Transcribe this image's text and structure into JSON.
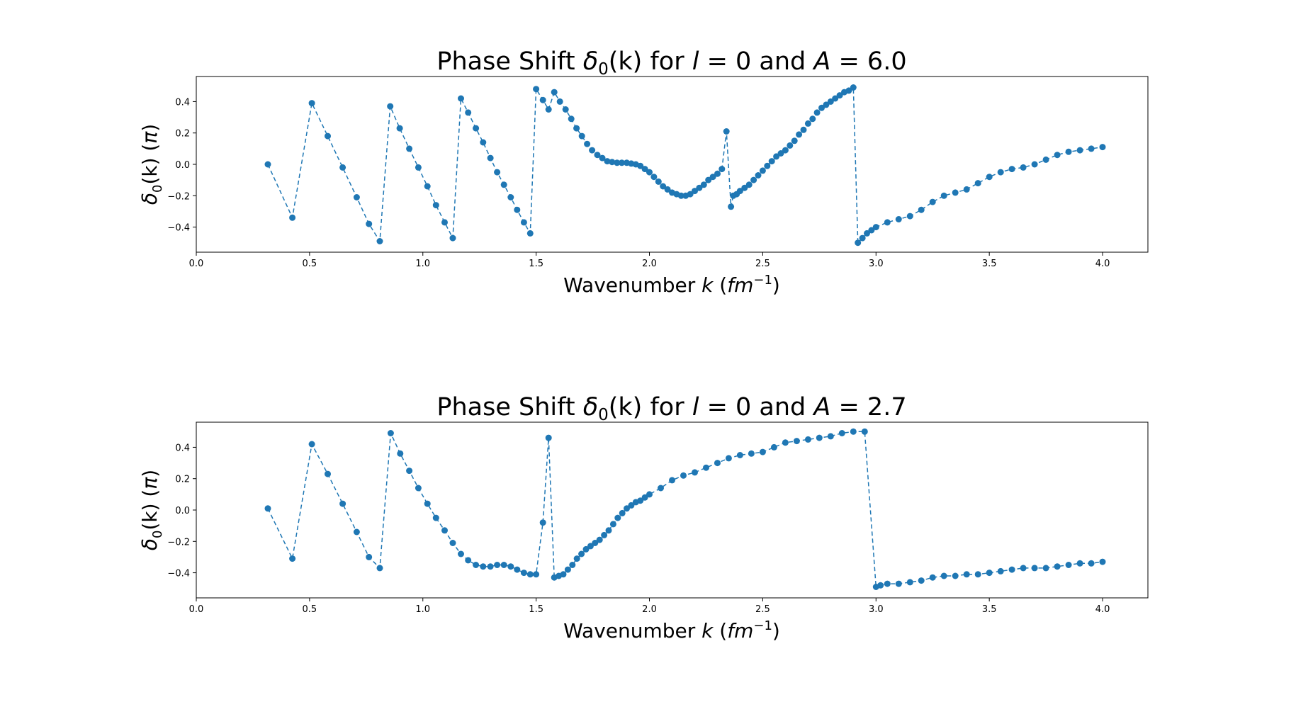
{
  "chart_data": [
    {
      "type": "line",
      "title": "Phase Shift δ₀(k) for l = 0 and A = 6.0",
      "title_parts": {
        "prefix": "Phase Shift ",
        "delta": "δ",
        "sub": "0",
        "k_part": "(k)",
        "for": " for ",
        "l": "l",
        "eq0": " = 0 and ",
        "A": "A",
        "eq": " = 6.0"
      },
      "xlabel": "Wavenumber k (fm⁻¹)",
      "xlabel_parts": {
        "prefix": "Wavenumber ",
        "k": "k",
        "open": " (",
        "fm": "fm",
        "sup": "−1",
        "close": ")"
      },
      "ylabel": "δ₀(k) (π)",
      "ylabel_parts": {
        "delta": "δ",
        "sub": "0",
        "k_part": "(k) (",
        "pi": "π",
        "close": ")"
      },
      "xlim": [
        0.0,
        4.2
      ],
      "ylim": [
        -0.56,
        0.56
      ],
      "xticks": [
        0.0,
        0.5,
        1.0,
        1.5,
        2.0,
        2.5,
        3.0,
        3.5,
        4.0
      ],
      "xtick_labels": [
        "0.0",
        "0.5",
        "1.0",
        "1.5",
        "2.0",
        "2.5",
        "3.0",
        "3.5",
        "4.0"
      ],
      "yticks": [
        -0.4,
        -0.2,
        0.0,
        0.2,
        0.4
      ],
      "ytick_labels": [
        "−0.4",
        "−0.2",
        "0.0",
        "0.2",
        "0.4"
      ],
      "grid": false,
      "series_color": "#1f77b4",
      "series": [
        {
          "style": "dashed line with circle markers",
          "x": [
            0.316,
            0.424,
            0.51,
            0.58,
            0.646,
            0.708,
            0.762,
            0.81,
            0.856,
            0.898,
            0.94,
            0.98,
            1.02,
            1.058,
            1.096,
            1.132,
            1.168,
            1.2,
            1.234,
            1.266,
            1.298,
            1.328,
            1.358,
            1.388,
            1.416,
            1.446,
            1.474,
            1.5,
            1.53,
            1.555,
            1.58,
            1.605,
            1.63,
            1.655,
            1.678,
            1.702,
            1.725,
            1.747,
            1.77,
            1.792,
            1.814,
            1.835,
            1.857,
            1.878,
            1.9,
            1.92,
            1.94,
            1.96,
            1.98,
            2.0,
            2.02,
            2.04,
            2.06,
            2.08,
            2.1,
            2.12,
            2.14,
            2.16,
            2.18,
            2.2,
            2.22,
            2.24,
            2.26,
            2.28,
            2.3,
            2.32,
            2.34,
            2.36,
            2.37,
            2.385,
            2.4,
            2.42,
            2.44,
            2.46,
            2.48,
            2.5,
            2.52,
            2.54,
            2.56,
            2.58,
            2.6,
            2.62,
            2.64,
            2.66,
            2.68,
            2.7,
            2.72,
            2.74,
            2.76,
            2.78,
            2.8,
            2.82,
            2.84,
            2.86,
            2.88,
            2.9,
            2.92,
            2.94,
            2.96,
            2.98,
            3.0,
            3.05,
            3.1,
            3.15,
            3.2,
            3.25,
            3.3,
            3.35,
            3.4,
            3.45,
            3.5,
            3.55,
            3.6,
            3.65,
            3.7,
            3.75,
            3.8,
            3.85,
            3.9,
            3.95,
            4.0
          ],
          "y": [
            0.0,
            -0.34,
            0.39,
            0.18,
            -0.02,
            -0.21,
            -0.38,
            -0.49,
            0.37,
            0.23,
            0.1,
            -0.02,
            -0.14,
            -0.26,
            -0.37,
            -0.47,
            0.42,
            0.33,
            0.23,
            0.14,
            0.04,
            -0.05,
            -0.13,
            -0.21,
            -0.29,
            -0.37,
            -0.44,
            0.48,
            0.41,
            0.35,
            0.46,
            0.4,
            0.35,
            0.29,
            0.23,
            0.18,
            0.13,
            0.09,
            0.06,
            0.04,
            0.02,
            0.015,
            0.01,
            0.01,
            0.01,
            0.005,
            0.0,
            -0.01,
            -0.03,
            -0.05,
            -0.08,
            -0.11,
            -0.14,
            -0.16,
            -0.18,
            -0.19,
            -0.2,
            -0.2,
            -0.19,
            -0.17,
            -0.15,
            -0.13,
            -0.1,
            -0.08,
            -0.06,
            -0.03,
            0.21,
            -0.27,
            -0.2,
            -0.19,
            -0.17,
            -0.15,
            -0.13,
            -0.1,
            -0.07,
            -0.04,
            -0.01,
            0.02,
            0.05,
            0.07,
            0.09,
            0.12,
            0.15,
            0.19,
            0.22,
            0.26,
            0.29,
            0.33,
            0.36,
            0.38,
            0.4,
            0.42,
            0.44,
            0.46,
            0.47,
            0.49,
            -0.5,
            -0.47,
            -0.44,
            -0.42,
            -0.4,
            -0.37,
            -0.35,
            -0.33,
            -0.29,
            -0.24,
            -0.2,
            -0.18,
            -0.16,
            -0.12,
            -0.08,
            -0.05,
            -0.03,
            -0.02,
            0.0,
            0.03,
            0.06,
            0.08,
            0.09,
            0.1,
            0.11
          ]
        }
      ]
    },
    {
      "type": "line",
      "title": "Phase Shift δ₀(k) for l = 0 and A = 2.7",
      "title_parts": {
        "prefix": "Phase Shift ",
        "delta": "δ",
        "sub": "0",
        "k_part": "(k)",
        "for": " for ",
        "l": "l",
        "eq0": " = 0 and ",
        "A": "A",
        "eq": " = 2.7"
      },
      "xlabel": "Wavenumber k (fm⁻¹)",
      "xlabel_parts": {
        "prefix": "Wavenumber ",
        "k": "k",
        "open": " (",
        "fm": "fm",
        "sup": "−1",
        "close": ")"
      },
      "ylabel": "δ₀(k) (π)",
      "ylabel_parts": {
        "delta": "δ",
        "sub": "0",
        "k_part": "(k) (",
        "pi": "π",
        "close": ")"
      },
      "xlim": [
        0.0,
        4.2
      ],
      "ylim": [
        -0.56,
        0.56
      ],
      "xticks": [
        0.0,
        0.5,
        1.0,
        1.5,
        2.0,
        2.5,
        3.0,
        3.5,
        4.0
      ],
      "xtick_labels": [
        "0.0",
        "0.5",
        "1.0",
        "1.5",
        "2.0",
        "2.5",
        "3.0",
        "3.5",
        "4.0"
      ],
      "yticks": [
        -0.4,
        -0.2,
        0.0,
        0.2,
        0.4
      ],
      "ytick_labels": [
        "−0.4",
        "−0.2",
        "0.0",
        "0.2",
        "0.4"
      ],
      "grid": false,
      "series_color": "#1f77b4",
      "series": [
        {
          "style": "dashed line with circle markers",
          "x": [
            0.316,
            0.424,
            0.51,
            0.58,
            0.646,
            0.708,
            0.762,
            0.81,
            0.858,
            0.9,
            0.94,
            0.98,
            1.02,
            1.058,
            1.096,
            1.132,
            1.168,
            1.2,
            1.234,
            1.266,
            1.298,
            1.328,
            1.358,
            1.388,
            1.416,
            1.446,
            1.474,
            1.5,
            1.53,
            1.555,
            1.58,
            1.6,
            1.62,
            1.64,
            1.66,
            1.68,
            1.7,
            1.72,
            1.74,
            1.76,
            1.78,
            1.8,
            1.82,
            1.84,
            1.86,
            1.88,
            1.9,
            1.92,
            1.94,
            1.96,
            1.98,
            2.0,
            2.05,
            2.1,
            2.15,
            2.2,
            2.25,
            2.3,
            2.35,
            2.4,
            2.45,
            2.5,
            2.55,
            2.6,
            2.65,
            2.7,
            2.75,
            2.8,
            2.85,
            2.9,
            2.95,
            3.0,
            3.02,
            3.05,
            3.1,
            3.15,
            3.2,
            3.25,
            3.3,
            3.35,
            3.4,
            3.45,
            3.5,
            3.55,
            3.6,
            3.65,
            3.7,
            3.75,
            3.8,
            3.85,
            3.9,
            3.95,
            4.0
          ],
          "y": [
            0.01,
            -0.31,
            0.42,
            0.23,
            0.04,
            -0.14,
            -0.3,
            -0.37,
            0.49,
            0.36,
            0.25,
            0.14,
            0.04,
            -0.05,
            -0.13,
            -0.21,
            -0.28,
            -0.32,
            -0.35,
            -0.36,
            -0.36,
            -0.35,
            -0.35,
            -0.36,
            -0.38,
            -0.4,
            -0.41,
            -0.41,
            -0.08,
            0.46,
            -0.43,
            -0.42,
            -0.41,
            -0.38,
            -0.35,
            -0.31,
            -0.28,
            -0.25,
            -0.23,
            -0.21,
            -0.19,
            -0.16,
            -0.13,
            -0.09,
            -0.05,
            -0.02,
            0.01,
            0.03,
            0.05,
            0.06,
            0.08,
            0.1,
            0.14,
            0.19,
            0.22,
            0.24,
            0.27,
            0.3,
            0.33,
            0.35,
            0.36,
            0.37,
            0.4,
            0.43,
            0.44,
            0.45,
            0.46,
            0.47,
            0.49,
            0.5,
            0.5,
            -0.49,
            -0.48,
            -0.47,
            -0.47,
            -0.46,
            -0.45,
            -0.43,
            -0.42,
            -0.42,
            -0.41,
            -0.41,
            -0.4,
            -0.39,
            -0.38,
            -0.37,
            -0.37,
            -0.37,
            -0.36,
            -0.35,
            -0.34,
            -0.34,
            -0.33
          ]
        }
      ]
    }
  ]
}
